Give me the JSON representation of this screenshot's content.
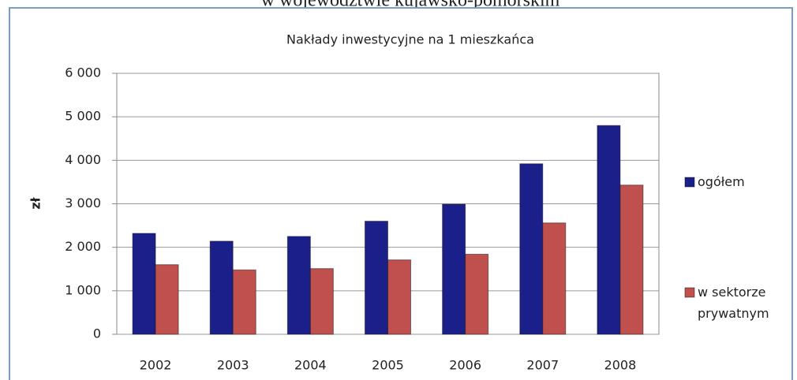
{
  "page_header": "w województwie kujawsko-pomorskim",
  "chart_data": {
    "type": "bar",
    "title": "Nakłady inwestycyjne na 1 mieszkańca",
    "y_label": "zł",
    "categories": [
      "2002",
      "2003",
      "2004",
      "2005",
      "2006",
      "2007",
      "2008"
    ],
    "series": [
      {
        "name": "ogółem",
        "color": "#1b1f8a",
        "values": [
          2320,
          2140,
          2250,
          2600,
          2990,
          3920,
          4800
        ]
      },
      {
        "name": "w sektorze prywatnym",
        "color": "#c0504d",
        "values": [
          1600,
          1480,
          1510,
          1710,
          1840,
          2560,
          3430
        ]
      }
    ],
    "ylim": [
      0,
      6000
    ],
    "yticks": [
      0,
      {
        "value": 1000,
        "label": "1 000"
      },
      {
        "value": 2000,
        "label": "2 000"
      },
      {
        "value": 3000,
        "label": "3 000"
      },
      {
        "value": 4000,
        "label": "4 000"
      },
      {
        "value": 5000,
        "label": "5 000"
      },
      {
        "value": 6000,
        "label": "6 000"
      }
    ],
    "grid": true,
    "legend": "right"
  }
}
